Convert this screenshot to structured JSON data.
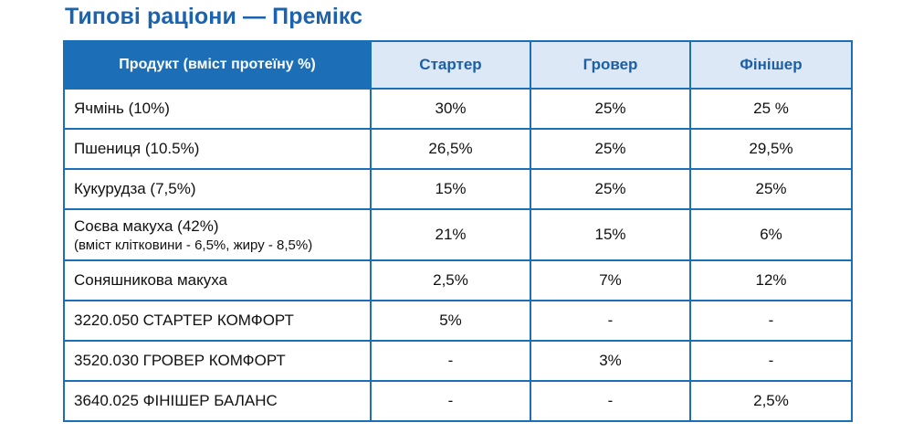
{
  "title": "Типові раціони — Премікс",
  "columns": [
    "Продукт (вміст протеїну %)",
    "Стартер",
    "Гровер",
    "Фінішер"
  ],
  "rows": [
    {
      "product": "Ячмінь (10%)",
      "sub": "",
      "values": [
        "30%",
        "25%",
        "25 %"
      ]
    },
    {
      "product": "Пшениця (10.5%)",
      "sub": "",
      "values": [
        "26,5%",
        "25%",
        "29,5%"
      ]
    },
    {
      "product": "Кукурудза (7,5%)",
      "sub": "",
      "values": [
        "15%",
        "25%",
        "25%"
      ]
    },
    {
      "product": "Соєва макуха (42%)",
      "sub": "(вміст клітковини - 6,5%, жиру - 8,5%)",
      "values": [
        "21%",
        "15%",
        "6%"
      ]
    },
    {
      "product": "Соняшникова макуха",
      "sub": "",
      "values": [
        "2,5%",
        "7%",
        "12%"
      ]
    },
    {
      "product": "3220.050  СТАРТЕР КОМФОРТ",
      "sub": "",
      "values": [
        "5%",
        "-",
        "-"
      ]
    },
    {
      "product": "3520.030  ГРОВЕР КОМФОРТ",
      "sub": "",
      "values": [
        "-",
        "3%",
        "-"
      ]
    },
    {
      "product": "3640.025  ФІНІШЕР БАЛАНС",
      "sub": "",
      "values": [
        "-",
        "-",
        "2,5%"
      ]
    }
  ],
  "colors": {
    "accent": "#1c6fb6",
    "title": "#1b63ae",
    "header_light": "#dce8f5"
  }
}
